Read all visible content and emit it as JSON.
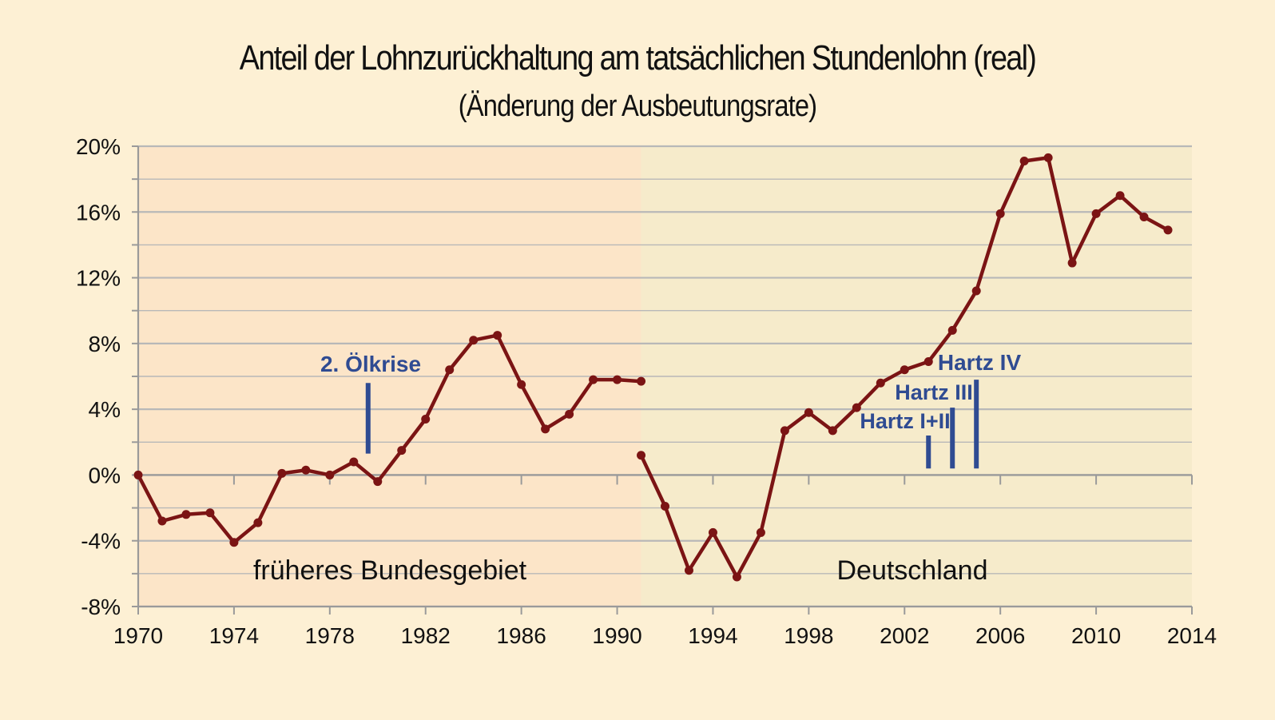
{
  "chart_data": {
    "type": "line",
    "title": "Anteil der Lohnzurückhaltung am tatsächlichen Stundenlohn (real)",
    "subtitle": "(Änderung der Ausbeutungsrate)",
    "xlabel": "",
    "ylabel": "",
    "xlim": [
      1970,
      2014
    ],
    "ylim": [
      -8,
      20
    ],
    "x_ticks": [
      1970,
      1974,
      1978,
      1982,
      1986,
      1990,
      1994,
      1998,
      2002,
      2006,
      2010,
      2014
    ],
    "y_ticks": [
      -8,
      -4,
      0,
      4,
      8,
      12,
      16,
      20
    ],
    "y_tick_labels": [
      "-8%",
      "-4%",
      "0%",
      "4%",
      "8%",
      "12%",
      "16%",
      "20%"
    ],
    "grid": true,
    "regions": [
      {
        "label": "früheres Bundesgebiet",
        "x_from": 1970,
        "x_to": 1991,
        "color": "#fce5c8"
      },
      {
        "label": "Deutschland",
        "x_from": 1991,
        "x_to": 2014,
        "color": "#f6ebcb"
      }
    ],
    "series": [
      {
        "segments": [
          {
            "x": [
              1970,
              1971,
              1972,
              1973,
              1974,
              1975,
              1976,
              1977,
              1978,
              1979,
              1980,
              1981,
              1982,
              1983,
              1984,
              1985,
              1986,
              1987,
              1988,
              1989,
              1990,
              1991
            ],
            "y": [
              0.0,
              -2.8,
              -2.4,
              -2.3,
              -4.1,
              -2.9,
              0.1,
              0.3,
              0.0,
              0.8,
              -0.4,
              1.5,
              3.4,
              6.4,
              8.2,
              8.5,
              5.5,
              2.8,
              3.7,
              5.8,
              5.8,
              5.7
            ]
          },
          {
            "x": [
              1991,
              1992,
              1993,
              1994,
              1995,
              1996,
              1997,
              1998,
              1999,
              2000,
              2001,
              2002,
              2003,
              2004,
              2005,
              2006,
              2007,
              2008,
              2009,
              2010,
              2011,
              2012,
              2013
            ],
            "y": [
              1.2,
              -1.9,
              -5.8,
              -3.5,
              -6.2,
              -3.5,
              2.7,
              3.8,
              2.7,
              4.1,
              5.6,
              6.4,
              6.9,
              8.8,
              11.2,
              15.9,
              19.1,
              19.3,
              12.9,
              15.9,
              17.0,
              15.7,
              14.9
            ]
          }
        ],
        "color": "#7b1414"
      }
    ],
    "annotations": [
      {
        "label": "2. Ölkrise",
        "x": 1979.6,
        "y_from": 1.3,
        "y_to": 5.6
      },
      {
        "label": "Hartz I+II",
        "x": 2003,
        "y_from": 0.4,
        "y_to": 2.4
      },
      {
        "label": "Hartz III",
        "x": 2004,
        "y_from": 0.4,
        "y_to": 4.1
      },
      {
        "label": "Hartz IV",
        "x": 2005,
        "y_from": 0.4,
        "y_to": 5.8
      }
    ],
    "colors": {
      "background": "#fdf0d4",
      "annotation": "#2f4b92",
      "line": "#7b1414",
      "grid": "#b8b8b8"
    }
  }
}
